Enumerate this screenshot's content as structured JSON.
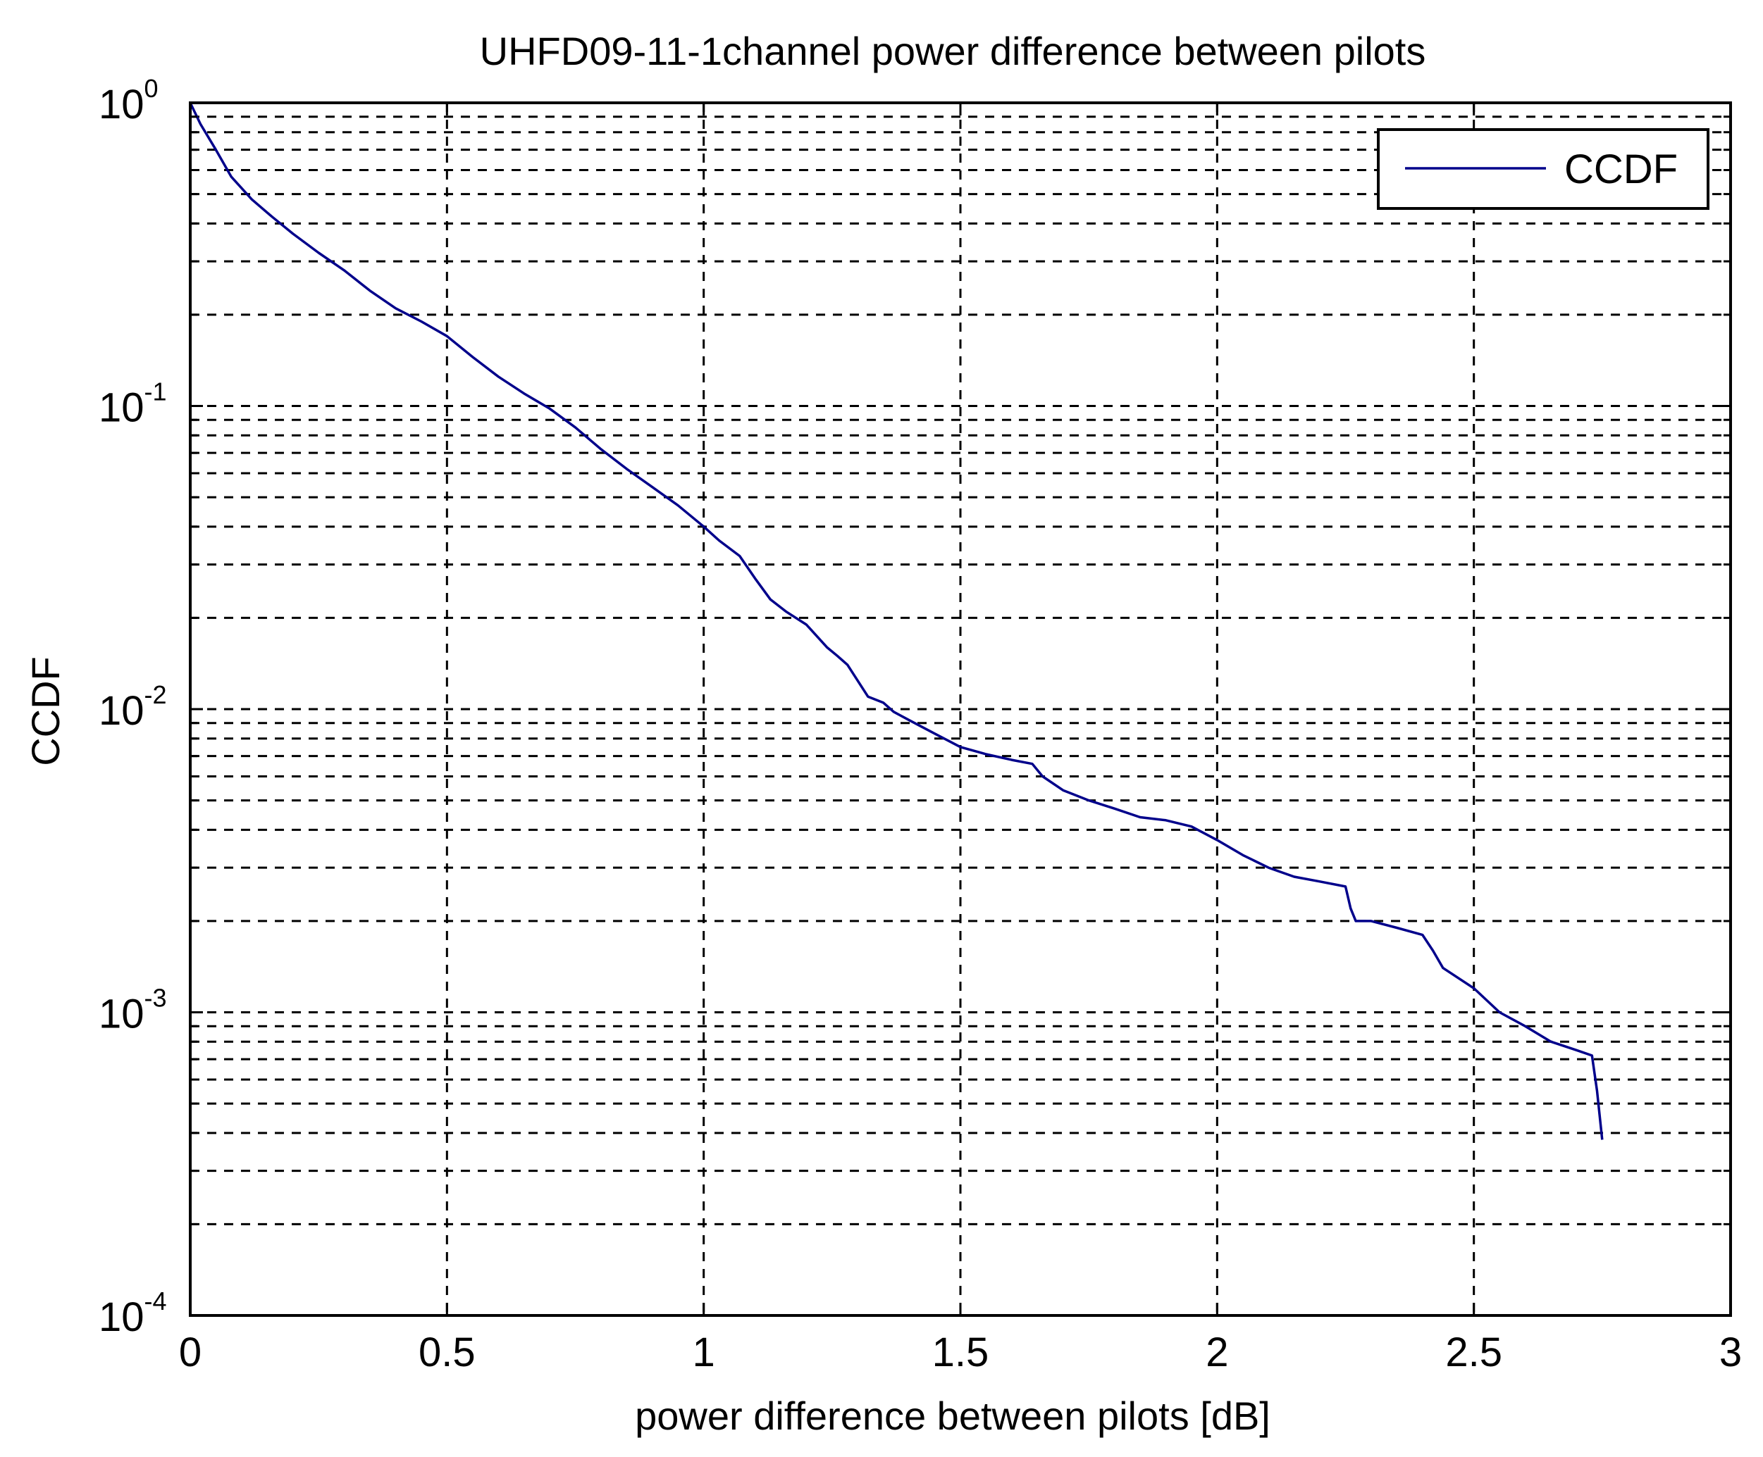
{
  "chart_data": {
    "type": "line",
    "title": "UHFD09-11-1channel power difference between pilots",
    "xlabel": "power difference between pilots [dB]",
    "ylabel": "CCDF",
    "xlim": [
      0,
      3
    ],
    "ylim": [
      0.0001,
      1
    ],
    "yscale": "log",
    "grid": true,
    "legend_position": "top-right",
    "x_ticks": [
      {
        "value": 0,
        "label": "0"
      },
      {
        "value": 0.5,
        "label": "0.5"
      },
      {
        "value": 1,
        "label": "1"
      },
      {
        "value": 1.5,
        "label": "1.5"
      },
      {
        "value": 2,
        "label": "2"
      },
      {
        "value": 2.5,
        "label": "2.5"
      },
      {
        "value": 3,
        "label": "3"
      }
    ],
    "y_ticks": [
      {
        "value": 1,
        "base": "10",
        "exp": "0"
      },
      {
        "value": 0.1,
        "base": "10",
        "exp": "-1"
      },
      {
        "value": 0.01,
        "base": "10",
        "exp": "-2"
      },
      {
        "value": 0.001,
        "base": "10",
        "exp": "-3"
      },
      {
        "value": 0.0001,
        "base": "10",
        "exp": "-4"
      }
    ],
    "series": [
      {
        "name": "CCDF",
        "color": "#00008b",
        "x": [
          0.0,
          0.02,
          0.05,
          0.08,
          0.12,
          0.16,
          0.2,
          0.25,
          0.3,
          0.35,
          0.4,
          0.45,
          0.5,
          0.55,
          0.6,
          0.65,
          0.7,
          0.75,
          0.8,
          0.85,
          0.9,
          0.95,
          1.0,
          1.03,
          1.07,
          1.1,
          1.13,
          1.16,
          1.2,
          1.24,
          1.26,
          1.28,
          1.32,
          1.35,
          1.37,
          1.4,
          1.45,
          1.5,
          1.55,
          1.6,
          1.64,
          1.66,
          1.7,
          1.75,
          1.8,
          1.85,
          1.9,
          1.95,
          2.0,
          2.05,
          2.1,
          2.15,
          2.2,
          2.25,
          2.26,
          2.27,
          2.3,
          2.35,
          2.4,
          2.42,
          2.44,
          2.5,
          2.55,
          2.6,
          2.65,
          2.7,
          2.73,
          2.74,
          2.75
        ],
        "y": [
          1.0,
          0.85,
          0.7,
          0.57,
          0.48,
          0.42,
          0.37,
          0.32,
          0.28,
          0.24,
          0.21,
          0.19,
          0.17,
          0.145,
          0.125,
          0.11,
          0.098,
          0.085,
          0.072,
          0.062,
          0.054,
          0.047,
          0.04,
          0.036,
          0.032,
          0.027,
          0.023,
          0.021,
          0.019,
          0.016,
          0.015,
          0.014,
          0.011,
          0.0105,
          0.0098,
          0.0092,
          0.0083,
          0.0075,
          0.0071,
          0.0068,
          0.0066,
          0.006,
          0.0054,
          0.005,
          0.0047,
          0.0044,
          0.0043,
          0.0041,
          0.0037,
          0.0033,
          0.003,
          0.0028,
          0.0027,
          0.0026,
          0.0022,
          0.002,
          0.002,
          0.0019,
          0.0018,
          0.0016,
          0.0014,
          0.0012,
          0.001,
          0.0009,
          0.0008,
          0.00075,
          0.00072,
          0.00055,
          0.00038
        ]
      }
    ]
  }
}
